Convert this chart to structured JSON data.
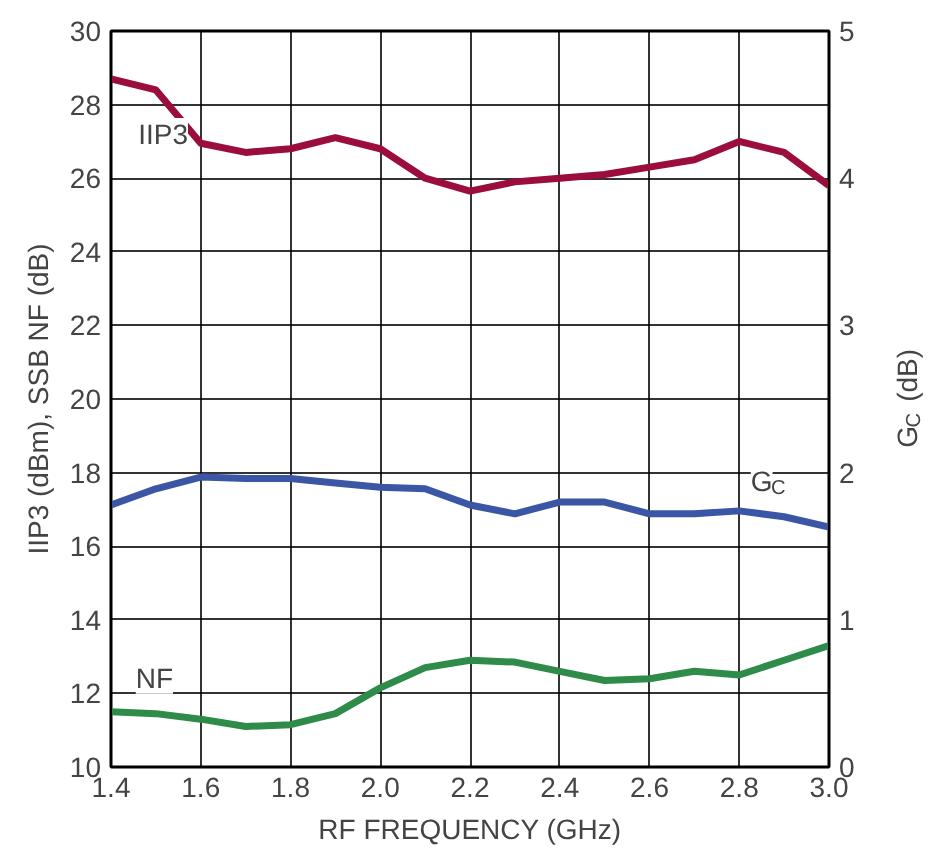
{
  "chart_data": {
    "type": "line",
    "xlabel": "RF FREQUENCY (GHz)",
    "ylabel": "IIP3 (dBm), SSB NF (dB)",
    "y2label": "G$_{C}$ (dB)",
    "x": [
      1.4,
      1.5,
      1.6,
      1.7,
      1.8,
      1.9,
      2.0,
      2.1,
      2.2,
      2.3,
      2.4,
      2.5,
      2.6,
      2.7,
      2.8,
      2.9,
      3.0
    ],
    "series": [
      {
        "name": "IIP3",
        "color": "#9b0d3a",
        "values": [
          28.7,
          28.4,
          26.95,
          26.7,
          26.8,
          27.1,
          26.8,
          26.0,
          25.65,
          25.9,
          26.0,
          26.1,
          26.3,
          26.5,
          27.0,
          26.7,
          25.8
        ]
      },
      {
        "name": "G$_{C}$",
        "color": "#3a56a5",
        "axis": "y2",
        "values": [
          1.78,
          1.89,
          1.97,
          1.96,
          1.96,
          1.93,
          1.9,
          1.89,
          1.78,
          1.72,
          1.8,
          1.8,
          1.72,
          1.72,
          1.74,
          1.7,
          1.63
        ]
      },
      {
        "name": "NF",
        "color": "#2e8b4a",
        "values": [
          11.5,
          11.45,
          11.3,
          11.1,
          11.15,
          11.45,
          12.15,
          12.7,
          12.9,
          12.85,
          12.6,
          12.35,
          12.4,
          12.6,
          12.5,
          12.9,
          13.3
        ]
      }
    ],
    "xlim": [
      1.4,
      3.0
    ],
    "xticks": [
      1.4,
      1.6,
      1.8,
      {
        "value": 2,
        "label": "2.0"
      },
      2.2,
      2.4,
      2.6,
      2.8,
      {
        "value": 3,
        "label": "3.0"
      }
    ],
    "ylim": [
      10,
      30
    ],
    "yticks": [
      10,
      12,
      14,
      16,
      18,
      20,
      22,
      24,
      26,
      28,
      30
    ],
    "y2lim": [
      0,
      5
    ],
    "y2ticks": [
      0,
      1,
      2,
      3,
      4,
      5
    ],
    "grid": true,
    "legend": false,
    "line_style": "solid",
    "marker": "none"
  }
}
